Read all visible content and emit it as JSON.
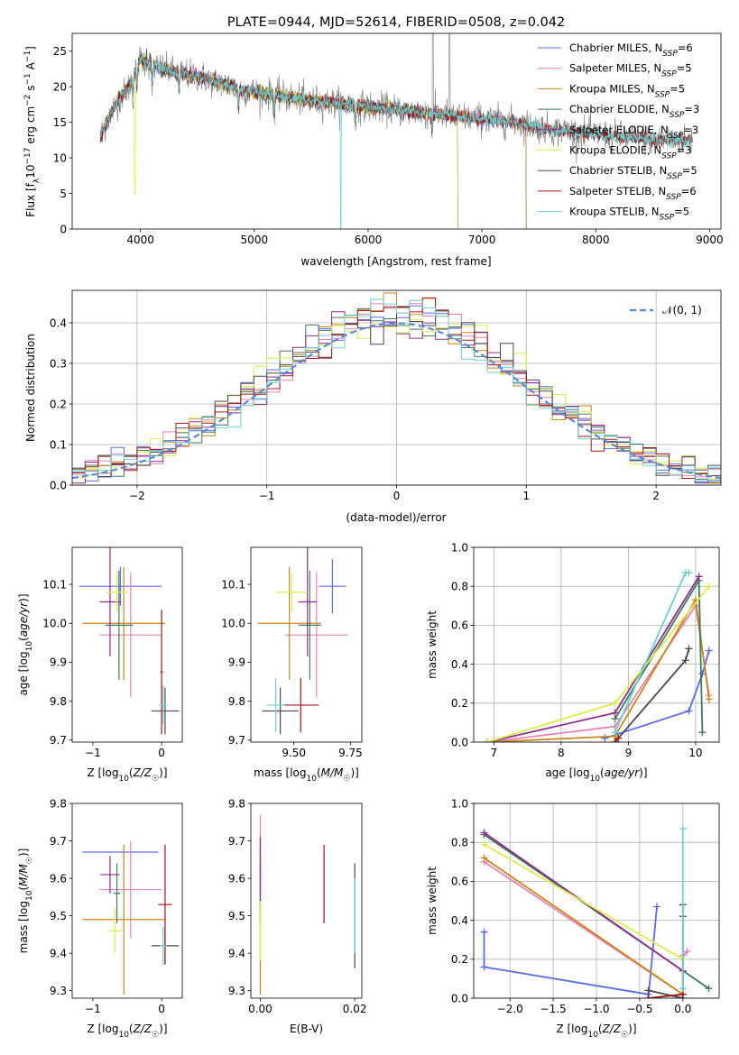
{
  "colors": {
    "Chabrier MILES": "#5b6be8",
    "Salpeter MILES": "#e882b4",
    "Kroupa MILES": "#c8861c",
    "Chabrier ELODIE": "#3f7a5a",
    "Salpeter ELODIE": "#8a2f8a",
    "Kroupa ELODIE": "#dcec4a",
    "Chabrier STELIB": "#4a4a4a",
    "Salpeter STELIB": "#a01818",
    "Kroupa STELIB": "#6fcfd0",
    "gaussian": "#5b8ad6"
  },
  "chart_data": [
    {
      "id": "spectrum",
      "type": "line",
      "title": "PLATE=0944, MJD=52614, FIBERID=0508, z=0.042",
      "xlabel": "wavelength [Angstrom, rest frame]",
      "ylabel": "Flux [fλ10⁻¹⁷ erg cm⁻² s⁻¹ A⁻¹]",
      "xlim": [
        3400,
        9100
      ],
      "ylim": [
        0,
        27.5
      ],
      "xticks": [
        4000,
        5000,
        6000,
        7000,
        8000,
        9000
      ],
      "yticks": [
        0,
        5,
        10,
        15,
        20,
        25
      ],
      "legend_position": "top-right",
      "data_flux_profile": {
        "x": [
          3650,
          3700,
          3800,
          3900,
          4000,
          4100,
          4300,
          4500,
          4700,
          4900,
          5100,
          5300,
          5500,
          5800,
          6100,
          6400,
          6700,
          7000,
          7300,
          7600,
          7900,
          8200,
          8500,
          8800
        ],
        "y": [
          13,
          15,
          18,
          20,
          24,
          23,
          22,
          21.5,
          20.5,
          19.5,
          19,
          18.5,
          18,
          17.5,
          17,
          16.5,
          16,
          15.5,
          15,
          14,
          13.5,
          13,
          12.5,
          12.5
        ]
      },
      "series": [
        {
          "name": "Chabrier MILES",
          "nssp": "6",
          "end": 7400
        },
        {
          "name": "Salpeter MILES",
          "nssp": "5",
          "end": 7400
        },
        {
          "name": "Kroupa MILES",
          "nssp": "5",
          "end": 7400
        },
        {
          "name": "Chabrier ELODIE",
          "nssp": "3",
          "end": 6800
        },
        {
          "name": "Salpeter ELODIE",
          "nssp": "3",
          "end": 6800
        },
        {
          "name": "Kroupa ELODIE",
          "nssp": "3",
          "end": 6800
        },
        {
          "name": "Chabrier STELIB",
          "nssp": "5",
          "end": 8850
        },
        {
          "name": "Salpeter STELIB",
          "nssp": "6",
          "end": 8850
        },
        {
          "name": "Kroupa STELIB",
          "nssp": "5",
          "end": 8850
        }
      ]
    },
    {
      "id": "residuals",
      "type": "line",
      "xlabel": "(data-model)/error",
      "ylabel": "Normed distribution",
      "xlim": [
        -2.5,
        2.5
      ],
      "ylim": [
        0,
        0.48
      ],
      "xticks": [
        -2,
        -1,
        0,
        1,
        2
      ],
      "yticks": [
        0.0,
        0.1,
        0.2,
        0.3,
        0.4
      ],
      "legend": "𝒩(0, 1)",
      "legend_position": "top-right",
      "grid": true,
      "histogram_bin_width": 0.1,
      "histogram_note": "nine step histograms, one per model, with colors following the spectrum legend"
    },
    {
      "id": "age-vs-z",
      "type": "scatter",
      "xlabel": "Z [log₁₀(Z/Z☉)]",
      "ylabel": "age  [log₁₀(age/yr)]",
      "xlim": [
        -1.3,
        0.3
      ],
      "ylim": [
        9.695,
        10.195
      ],
      "xticks": [
        -1,
        0
      ],
      "yticks": [
        9.7,
        9.8,
        9.9,
        10.0,
        10.1
      ],
      "points": [
        {
          "model": "Chabrier MILES",
          "x": -0.6,
          "y": 10.095,
          "xerr": 0.6,
          "yerr": 0.05
        },
        {
          "model": "Salpeter MILES",
          "x": -0.45,
          "y": 9.97,
          "xerr": 0.45,
          "yerr": 0.16
        },
        {
          "model": "Kroupa MILES",
          "x": -0.55,
          "y": 10.0,
          "xerr": 0.6,
          "yerr": 0.145
        },
        {
          "model": "Chabrier ELODIE",
          "x": -0.62,
          "y": 9.995,
          "xerr": 0.2,
          "yerr": 0.14
        },
        {
          "model": "Salpeter ELODIE",
          "x": -0.75,
          "y": 10.055,
          "xerr": 0.15,
          "yerr": 0.14
        },
        {
          "model": "Kroupa ELODIE",
          "x": -0.65,
          "y": 10.08,
          "xerr": 0.15,
          "yerr": 0.05
        },
        {
          "model": "Chabrier STELIB",
          "x": 0.05,
          "y": 9.775,
          "xerr": 0.2,
          "yerr": 0.06
        },
        {
          "model": "Salpeter STELIB",
          "x": 0.0,
          "y": 9.875,
          "xerr": 0.02,
          "yerr": 0.16
        },
        {
          "model": "Kroupa STELIB",
          "x": 0.02,
          "y": 9.79,
          "xerr": 0.06,
          "yerr": 0.05
        }
      ]
    },
    {
      "id": "age-vs-mass",
      "type": "scatter",
      "xlabel": "mass [log₁₀(M/M☉)]",
      "ylabel": "",
      "xlim": [
        9.31,
        9.8
      ],
      "ylim": [
        9.695,
        10.195
      ],
      "xticks": [
        9.5,
        9.75
      ],
      "yticks": [
        9.7,
        9.8,
        9.9,
        10.0,
        10.1
      ],
      "points": [
        {
          "model": "Chabrier MILES",
          "x": 9.67,
          "y": 10.095,
          "xerr": 0.06,
          "yerr": 0.07
        },
        {
          "model": "Salpeter MILES",
          "x": 9.6,
          "y": 9.97,
          "xerr": 0.14,
          "yerr": 0.16
        },
        {
          "model": "Kroupa MILES",
          "x": 9.48,
          "y": 10.0,
          "xerr": 0.14,
          "yerr": 0.145
        },
        {
          "model": "Chabrier ELODIE",
          "x": 9.57,
          "y": 9.995,
          "xerr": 0.05,
          "yerr": 0.14
        },
        {
          "model": "Salpeter ELODIE",
          "x": 9.56,
          "y": 10.055,
          "xerr": 0.04,
          "yerr": 0.14
        },
        {
          "model": "Kroupa ELODIE",
          "x": 9.49,
          "y": 10.08,
          "xerr": 0.07,
          "yerr": 0.05
        },
        {
          "model": "Chabrier STELIB",
          "x": 9.44,
          "y": 9.775,
          "xerr": 0.08,
          "yerr": 0.06
        },
        {
          "model": "Salpeter STELIB",
          "x": 9.53,
          "y": 9.79,
          "xerr": 0.08,
          "yerr": 0.07
        },
        {
          "model": "Kroupa STELIB",
          "x": 9.42,
          "y": 9.79,
          "xerr": 0.04,
          "yerr": 0.07
        }
      ]
    },
    {
      "id": "weight-vs-age",
      "type": "line",
      "xlabel": "age  [log₁₀(age/yr)]",
      "ylabel": "mass weight",
      "xlim": [
        6.7,
        10.35
      ],
      "ylim": [
        0,
        1.0
      ],
      "xticks": [
        7,
        8,
        9,
        10
      ],
      "yticks": [
        0.0,
        0.2,
        0.4,
        0.6,
        0.8,
        1.0
      ],
      "grid": true,
      "series": [
        {
          "name": "Chabrier MILES",
          "x": [
            8.65,
            9.9,
            10.1,
            10.2
          ],
          "y": [
            0.02,
            0.16,
            0.35,
            0.47
          ]
        },
        {
          "name": "Salpeter MILES",
          "x": [
            6.9,
            8.8,
            10.0,
            10.2
          ],
          "y": [
            0.0,
            0.08,
            0.7,
            0.24
          ]
        },
        {
          "name": "Kroupa MILES",
          "x": [
            6.9,
            8.8,
            10.0,
            10.2
          ],
          "y": [
            0.0,
            0.03,
            0.73,
            0.22
          ]
        },
        {
          "name": "Chabrier ELODIE",
          "x": [
            8.8,
            10.05,
            10.1
          ],
          "y": [
            0.12,
            0.83,
            0.05
          ]
        },
        {
          "name": "Salpeter ELODIE",
          "x": [
            6.9,
            8.8,
            10.05
          ],
          "y": [
            0.0,
            0.15,
            0.85
          ]
        },
        {
          "name": "Kroupa ELODIE",
          "x": [
            6.9,
            8.8,
            10.2
          ],
          "y": [
            0.0,
            0.2,
            0.8
          ]
        },
        {
          "name": "Chabrier STELIB",
          "x": [
            8.8,
            9.85,
            9.9
          ],
          "y": [
            0.0,
            0.42,
            0.48
          ]
        },
        {
          "name": "Salpeter STELIB",
          "x": [
            8.8,
            8.85
          ],
          "y": [
            0.0,
            0.02
          ]
        },
        {
          "name": "Kroupa STELIB",
          "x": [
            8.8,
            9.85,
            9.9
          ],
          "y": [
            0.05,
            0.87,
            0.87
          ]
        }
      ]
    },
    {
      "id": "mass-vs-z",
      "type": "scatter",
      "xlabel": "Z [log₁₀(Z/Z☉)]",
      "ylabel": "mass [log₁₀(M/M☉)]",
      "xlim": [
        -1.3,
        0.3
      ],
      "ylim": [
        9.28,
        9.8
      ],
      "xticks": [
        -1,
        0
      ],
      "yticks": [
        9.3,
        9.4,
        9.5,
        9.6,
        9.7,
        9.8
      ],
      "points": [
        {
          "model": "Chabrier MILES",
          "x": -0.6,
          "y": 9.67,
          "xerr": 0.55,
          "yerr": 0.0
        },
        {
          "model": "Salpeter MILES",
          "x": -0.45,
          "y": 9.57,
          "xerr": 0.45,
          "yerr": 0.13
        },
        {
          "model": "Kroupa MILES",
          "x": -0.55,
          "y": 9.49,
          "xerr": 0.6,
          "yerr": 0.2
        },
        {
          "model": "Chabrier ELODIE",
          "x": -0.65,
          "y": 9.56,
          "xerr": 0.05,
          "yerr": 0.08
        },
        {
          "model": "Salpeter ELODIE",
          "x": -0.75,
          "y": 9.61,
          "xerr": 0.14,
          "yerr": 0.05
        },
        {
          "model": "Kroupa ELODIE",
          "x": -0.68,
          "y": 9.46,
          "xerr": 0.1,
          "yerr": 0.06
        },
        {
          "model": "Chabrier STELIB",
          "x": 0.05,
          "y": 9.42,
          "xerr": 0.2,
          "yerr": 0.05
        },
        {
          "model": "Salpeter STELIB",
          "x": 0.05,
          "y": 9.53,
          "xerr": 0.1,
          "yerr": 0.16
        },
        {
          "model": "Kroupa STELIB",
          "x": 0.02,
          "y": 9.42,
          "xerr": 0.05,
          "yerr": 0.05
        }
      ]
    },
    {
      "id": "mass-vs-ebv",
      "type": "scatter",
      "xlabel": "E(B-V)",
      "ylabel": "",
      "xlim": [
        -0.002,
        0.0215
      ],
      "ylim": [
        9.28,
        9.8
      ],
      "xticks": [
        0.0,
        0.02
      ],
      "yticks": [
        9.3,
        9.4,
        9.5,
        9.6,
        9.7,
        9.8
      ],
      "xtick_labels": [
        "0.00",
        "0.02"
      ],
      "points": [
        {
          "model": "Chabrier MILES",
          "x": 0.0,
          "y": 9.67,
          "yerr": 0.05
        },
        {
          "model": "Salpeter MILES",
          "x": 0.0,
          "y": 9.57,
          "yerr": 0.2
        },
        {
          "model": "Kroupa MILES",
          "x": 0.0,
          "y": 9.49,
          "yerr": 0.2
        },
        {
          "model": "Chabrier ELODIE",
          "x": 0.0,
          "y": 9.56,
          "yerr": 0.08
        },
        {
          "model": "Salpeter ELODIE",
          "x": 0.0,
          "y": 9.61,
          "yerr": 0.1
        },
        {
          "model": "Kroupa ELODIE",
          "x": 0.0,
          "y": 9.46,
          "yerr": 0.08
        },
        {
          "model": "Chabrier STELIB",
          "x": 0.02,
          "y": 9.5,
          "yerr": 0.14
        },
        {
          "model": "Salpeter STELIB",
          "x": 0.0135,
          "y": 9.585,
          "yerr": 0.105
        },
        {
          "model": "Kroupa STELIB",
          "x": 0.02,
          "y": 9.5,
          "yerr": 0.1
        }
      ]
    },
    {
      "id": "weight-vs-z",
      "type": "line",
      "xlabel": "Z [log₁₀(Z/Z☉)]",
      "ylabel": "mass weight",
      "xlim": [
        -2.42,
        0.42
      ],
      "ylim": [
        0,
        1.0
      ],
      "xticks": [
        -2.0,
        -1.5,
        -1.0,
        -0.5,
        0.0
      ],
      "yticks": [
        0.0,
        0.2,
        0.4,
        0.6,
        0.8,
        1.0
      ],
      "grid": true,
      "series": [
        {
          "name": "Chabrier MILES",
          "x": [
            -2.3,
            -2.3,
            -0.4,
            -0.4,
            -0.3
          ],
          "y": [
            0.34,
            0.16,
            0.02,
            0.0,
            0.47
          ]
        },
        {
          "name": "Salpeter MILES",
          "x": [
            -2.3,
            0.0,
            0.0,
            0.05
          ],
          "y": [
            0.7,
            0.02,
            0.22,
            0.24
          ]
        },
        {
          "name": "Kroupa MILES",
          "x": [
            -2.3,
            0.0
          ],
          "y": [
            0.72,
            0.02
          ]
        },
        {
          "name": "Chabrier ELODIE",
          "x": [
            -2.3,
            0.3
          ],
          "y": [
            0.84,
            0.05
          ]
        },
        {
          "name": "Salpeter ELODIE",
          "x": [
            -2.3,
            0.0
          ],
          "y": [
            0.85,
            0.14
          ]
        },
        {
          "name": "Kroupa ELODIE",
          "x": [
            -2.3,
            0.0
          ],
          "y": [
            0.79,
            0.2
          ]
        },
        {
          "name": "Chabrier STELIB",
          "x": [
            -0.4,
            0.0,
            0.0,
            0.0
          ],
          "y": [
            0.04,
            0.0,
            0.42,
            0.48
          ]
        },
        {
          "name": "Salpeter STELIB",
          "x": [
            -0.4,
            0.0
          ],
          "y": [
            0.0,
            0.02
          ]
        },
        {
          "name": "Kroupa STELIB",
          "x": [
            0.0,
            0.0
          ],
          "y": [
            0.05,
            0.87
          ]
        }
      ]
    }
  ]
}
